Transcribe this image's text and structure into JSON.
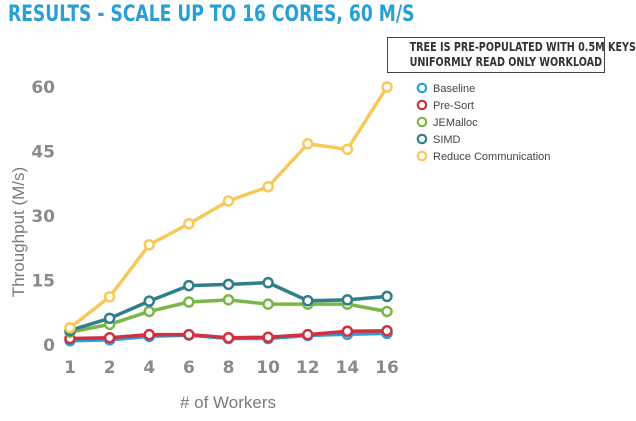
{
  "page": {
    "title": "RESULTS - SCALE UP TO 16 CORES, 60 M/S",
    "note_lines": [
      "TREE IS PRE-POPULATED WITH 0.5M KEYS",
      "UNIFORMLY READ ONLY WORKLOAD"
    ]
  },
  "chart_data": {
    "type": "line",
    "title": "RESULTS - SCALE UP TO 16 CORES, 60 M/S",
    "xlabel": "# of Workers",
    "ylabel": "Throughput (M/s)",
    "categories": [
      "1",
      "2",
      "4",
      "6",
      "8",
      "10",
      "12",
      "14",
      "16"
    ],
    "yticks": [
      "0",
      "15",
      "30",
      "45",
      "60"
    ],
    "ylim": [
      0,
      60
    ],
    "grid": false,
    "legend": "top-right",
    "series": [
      {
        "name": "Baseline",
        "color": "#2a9fd6",
        "values": [
          1.0,
          1.2,
          2.0,
          2.3,
          1.5,
          1.5,
          2.2,
          2.5,
          2.7
        ]
      },
      {
        "name": "Pre-Sort",
        "color": "#d0303f",
        "values": [
          1.5,
          1.7,
          2.4,
          2.4,
          1.7,
          1.8,
          2.4,
          3.2,
          3.3
        ]
      },
      {
        "name": "JEMalloc",
        "color": "#7ab648",
        "values": [
          3.0,
          4.8,
          7.8,
          10.0,
          10.5,
          9.5,
          9.5,
          9.5,
          7.8
        ]
      },
      {
        "name": "SIMD",
        "color": "#2f7f8a",
        "values": [
          3.4,
          6.2,
          10.2,
          13.8,
          14.1,
          14.5,
          10.3,
          10.5,
          11.3
        ]
      },
      {
        "name": "Reduce Communication",
        "color": "#f7c95a",
        "values": [
          4.0,
          11.2,
          23.3,
          28.2,
          33.5,
          36.8,
          46.8,
          45.5,
          60.0
        ]
      }
    ]
  }
}
